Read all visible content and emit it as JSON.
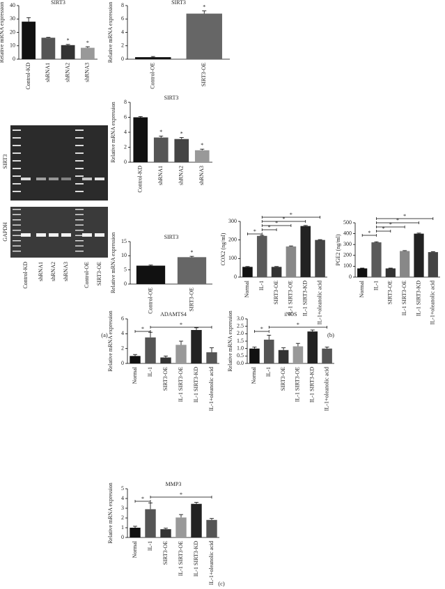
{
  "chart_data": [
    {
      "type": "bar",
      "title": "SIRT3",
      "y_label": "Relative mRNA expression",
      "categories": [
        "Control-KD",
        "shRNA1",
        "shRNA2",
        "shRNA3"
      ],
      "values": [
        28,
        16,
        10.5,
        8.5
      ],
      "errors": [
        3,
        0.3,
        0.5,
        0.8
      ],
      "colors": [
        "#111111",
        "#555555",
        "#333333",
        "#999999"
      ],
      "ylim": [
        0,
        40
      ],
      "yticks": [
        0,
        10,
        20,
        30,
        40
      ],
      "annotations": [
        {
          "text": "*",
          "category": "shRNA2"
        },
        {
          "text": "*",
          "category": "shRNA3"
        }
      ]
    },
    {
      "type": "bar",
      "title": "SIRT3",
      "y_label": "Relative mRNA expression",
      "categories": [
        "Control-OE",
        "SIRT3-OE"
      ],
      "values": [
        0.3,
        6.8
      ],
      "errors": [
        0.1,
        0.4
      ],
      "colors": [
        "#111111",
        "#666666"
      ],
      "ylim": [
        0,
        8
      ],
      "yticks": [
        0,
        2,
        4,
        6,
        8
      ],
      "annotations": [
        {
          "text": "*",
          "category": "SIRT3-OE"
        }
      ]
    },
    {
      "type": "bar",
      "title": "SIRT3",
      "y_label": "Relative mRNA expression",
      "categories": [
        "Control-KD",
        "shRNA1",
        "shRNA2",
        "shRNA3"
      ],
      "values": [
        6,
        3.3,
        3.1,
        1.6
      ],
      "errors": [
        0.1,
        0.2,
        0.2,
        0.15
      ],
      "colors": [
        "#111111",
        "#555555",
        "#444444",
        "#999999"
      ],
      "ylim": [
        0,
        8
      ],
      "yticks": [
        0,
        2,
        4,
        6,
        8
      ],
      "annotations": [
        {
          "text": "*",
          "category": "shRNA1"
        },
        {
          "text": "*",
          "category": "shRNA2"
        },
        {
          "text": "*",
          "category": "shRNA3"
        }
      ]
    },
    {
      "type": "bar",
      "title": "SIRT3",
      "y_label": "Relative mRNA expression",
      "categories": [
        "Control-OE",
        "SIRT3-OE"
      ],
      "values": [
        6.5,
        9.5
      ],
      "errors": [
        0.2,
        0.3
      ],
      "colors": [
        "#111111",
        "#666666"
      ],
      "ylim": [
        0,
        15
      ],
      "yticks": [
        0,
        5,
        10,
        15
      ],
      "annotations": [
        {
          "text": "*",
          "category": "SIRT3-OE"
        }
      ]
    },
    {
      "type": "bar",
      "y_label": "COX2 (ng/ml)",
      "categories": [
        "Normal",
        "IL-1",
        "SIRT3-OE",
        "IL-1 SIRT3-OE",
        "IL-1 SIRT3-KD",
        "IL-1+oleanolic acid"
      ],
      "values": [
        55,
        222,
        55,
        165,
        275,
        200
      ],
      "errors": [
        2,
        3,
        2,
        3,
        3,
        2
      ],
      "colors": [
        "#111111",
        "#5a5a5a",
        "#333333",
        "#888888",
        "#222222",
        "#444444"
      ],
      "ylim": [
        0,
        300
      ],
      "yticks": [
        0,
        100,
        200,
        300
      ],
      "brackets": [
        {
          "text": "*",
          "from": "Normal",
          "to": "IL-1"
        },
        {
          "text": "*",
          "from": "IL-1",
          "to": "SIRT3-OE"
        },
        {
          "text": "*",
          "from": "IL-1",
          "to": "IL-1 SIRT3-OE"
        },
        {
          "text": "*",
          "from": "IL-1",
          "to": "IL-1 SIRT3-KD"
        },
        {
          "text": "*",
          "from": "IL-1",
          "to": "IL-1+oleanolic acid"
        }
      ]
    },
    {
      "type": "bar",
      "y_label": "PGE2 (ng/ml)",
      "categories": [
        "Normal",
        "IL-1",
        "SIRT3-OE",
        "IL-1 SIRT3-OE",
        "IL-1 SIRT3-KD",
        "IL-1+oleanolic acid"
      ],
      "values": [
        80,
        320,
        80,
        240,
        400,
        230
      ],
      "errors": [
        3,
        5,
        3,
        4,
        5,
        4
      ],
      "colors": [
        "#111111",
        "#5a5a5a",
        "#333333",
        "#888888",
        "#222222",
        "#444444"
      ],
      "ylim": [
        0,
        500
      ],
      "yticks": [
        0,
        100,
        200,
        300,
        400,
        500
      ],
      "brackets": [
        {
          "text": "*",
          "from": "Normal",
          "to": "IL-1"
        },
        {
          "text": "*",
          "from": "IL-1",
          "to": "SIRT3-OE"
        },
        {
          "text": "*",
          "from": "IL-1",
          "to": "IL-1 SIRT3-OE"
        },
        {
          "text": "*",
          "from": "IL-1",
          "to": "IL-1 SIRT3-KD"
        },
        {
          "text": "*",
          "from": "IL-1",
          "to": "IL-1+oleanolic acid"
        }
      ]
    },
    {
      "type": "bar",
      "title": "ADAMTS4",
      "y_label": "Relative mRNA expression",
      "categories": [
        "Normal",
        "IL-1",
        "SIRT3-OE",
        "IL-1 SIRT3-OE",
        "IL-1 SIRT3-KD",
        "IL-1+oleanolic acid"
      ],
      "values": [
        1,
        3.5,
        0.8,
        2.5,
        4.5,
        1.5
      ],
      "errors": [
        0.2,
        0.7,
        0.2,
        0.5,
        0.3,
        0.6
      ],
      "colors": [
        "#111111",
        "#555555",
        "#333333",
        "#999999",
        "#222222",
        "#555555"
      ],
      "ylim": [
        0,
        6
      ],
      "yticks": [
        0,
        2,
        4,
        6
      ],
      "brackets": [
        {
          "text": "*",
          "from": "Normal",
          "to": "IL-1"
        },
        {
          "text": "*",
          "from": "IL-1",
          "to": "IL-1+oleanolic acid"
        }
      ]
    },
    {
      "type": "bar",
      "title": "iNOS",
      "y_label": "Relative mRNA expression",
      "categories": [
        "Normal",
        "IL-1",
        "SIRT3-OE",
        "IL-1 SIRT3-OE",
        "IL-1 SIRT3-KD",
        "IL-1+oleanolic acid"
      ],
      "values": [
        1,
        1.6,
        0.9,
        1.15,
        2.15,
        1.0
      ],
      "errors": [
        0.1,
        0.3,
        0.15,
        0.2,
        0.1,
        0.1
      ],
      "colors": [
        "#111111",
        "#555555",
        "#333333",
        "#999999",
        "#222222",
        "#555555"
      ],
      "ylim": [
        0,
        3
      ],
      "yticks": [
        {
          "value": 0,
          "label": "0.0"
        },
        0.5,
        {
          "value": 1,
          "label": "1.0"
        },
        1.5,
        {
          "value": 2,
          "label": "2.0"
        },
        2.5,
        {
          "value": 3,
          "label": "3.0"
        }
      ],
      "brackets": [
        {
          "text": "*",
          "from": "Normal",
          "to": "IL-1"
        },
        {
          "text": "*",
          "from": "IL-1",
          "to": "IL-1+oleanolic acid"
        }
      ]
    },
    {
      "type": "bar",
      "title": "MMP3",
      "y_label": "Relative mRNA expression",
      "categories": [
        "Normal",
        "IL-1",
        "SIRT3-OE",
        "IL-1 SIRT3-OE",
        "IL-1 SIRT3-KD",
        "IL-1+oleanolic acid"
      ],
      "values": [
        1,
        2.9,
        0.85,
        2.05,
        3.45,
        1.8
      ],
      "errors": [
        0.15,
        0.65,
        0.1,
        0.3,
        0.15,
        0.15
      ],
      "colors": [
        "#111111",
        "#555555",
        "#333333",
        "#999999",
        "#222222",
        "#555555"
      ],
      "ylim": [
        0,
        5
      ],
      "yticks": [
        0,
        1,
        2,
        3,
        4,
        5
      ],
      "brackets": [
        {
          "text": "*",
          "from": "Normal",
          "to": "IL-1"
        },
        {
          "text": "*",
          "from": "IL-1",
          "to": "IL-1+oleanolic acid"
        }
      ]
    }
  ],
  "blot": {
    "row_labels": [
      "SIRT3",
      "GAPDH"
    ],
    "lane_labels": [
      "Control-KD",
      "shRNA1",
      "shRNA2",
      "shRNA3",
      "Control-OE",
      "SIRT3-OE"
    ]
  },
  "panel_labels": [
    "(a)",
    "(b)",
    "(c)"
  ]
}
